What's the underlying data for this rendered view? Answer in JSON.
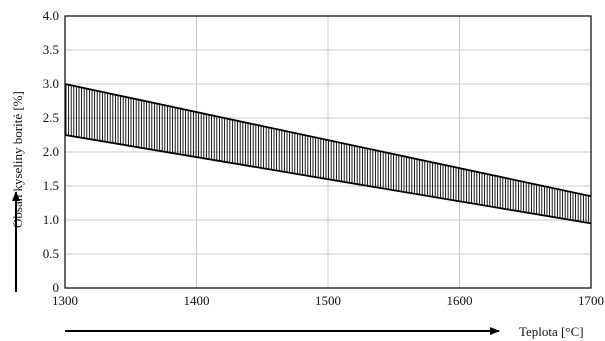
{
  "chart_data": {
    "type": "area",
    "title": "",
    "xlabel": "Teplota [°C]",
    "ylabel": "Obsah kyseliny borité [%]",
    "xlim": [
      1300,
      1700
    ],
    "ylim": [
      0,
      4.0
    ],
    "x_ticks": [
      "1300",
      "1400",
      "1500",
      "1600",
      "1700"
    ],
    "y_ticks": [
      "0",
      "0.5",
      "1.0",
      "1.5",
      "2.0",
      "2.5",
      "3.0",
      "3.5",
      "4.0"
    ],
    "grid": true,
    "band": {
      "x": [
        1300,
        1700
      ],
      "upper": [
        3.0,
        1.35
      ],
      "lower": [
        2.25,
        0.95
      ],
      "fill": "vertical-hatch"
    },
    "colors": {
      "line": "#000000",
      "grid": "#c8c8c8",
      "background": "#ffffff"
    }
  }
}
